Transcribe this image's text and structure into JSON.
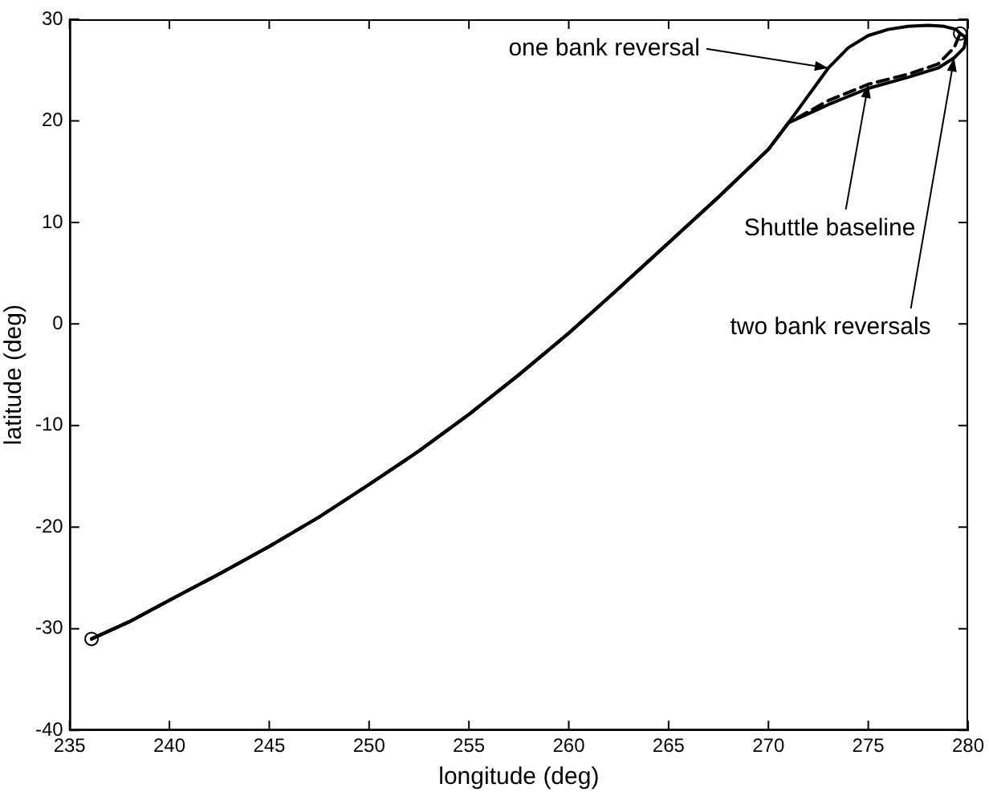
{
  "chart_data": {
    "type": "line",
    "xlabel": "longitude (deg)",
    "ylabel": "latitude (deg)",
    "xlim": [
      235,
      280
    ],
    "xticks": [
      235,
      240,
      245,
      250,
      255,
      260,
      265,
      270,
      275,
      280
    ],
    "ylim": [
      -40,
      30
    ],
    "yticks": [
      -40,
      -30,
      -20,
      -10,
      0,
      10,
      20,
      30
    ],
    "grid": false,
    "legend": false,
    "marker": "none",
    "series": [
      {
        "color": "#000000",
        "line_style": "dashed",
        "x": [
          236.1,
          238,
          240,
          242.5,
          245,
          247.5,
          250,
          252.5,
          255,
          257.5,
          260,
          262.5,
          265,
          267.5,
          270,
          271,
          273,
          275,
          277,
          278.5,
          279.3,
          279.6
        ],
        "values": [
          -31,
          -29.3,
          -27.2,
          -24.6,
          -21.9,
          -19,
          -15.8,
          -12.5,
          -8.9,
          -5,
          -0.9,
          3.5,
          8,
          12.5,
          17.2,
          19.8,
          22,
          23.6,
          24.6,
          25.6,
          27.2,
          28.6
        ]
      },
      {
        "color": "#000000",
        "line_style": "solid",
        "x": [
          236.1,
          238,
          240,
          242.5,
          245,
          247.5,
          250,
          252.5,
          255,
          257.5,
          260,
          262.5,
          265,
          267.5,
          270,
          271,
          272,
          273,
          274,
          275,
          276,
          277,
          278,
          278.8,
          279.4,
          279.6
        ],
        "values": [
          -31,
          -29.3,
          -27.2,
          -24.6,
          -21.9,
          -19,
          -15.8,
          -12.5,
          -8.9,
          -5,
          -0.9,
          3.5,
          8,
          12.5,
          17.2,
          19.8,
          22.5,
          25.2,
          27.2,
          28.4,
          29,
          29.3,
          29.4,
          29.3,
          29,
          28.6
        ]
      },
      {
        "color": "#000000",
        "line_style": "solid",
        "x": [
          236.1,
          238,
          240,
          242.5,
          245,
          247.5,
          250,
          252.5,
          255,
          257.5,
          260,
          262.5,
          265,
          267.5,
          270,
          271,
          273,
          275,
          277,
          278.5,
          279.3,
          279.8,
          279.9,
          279.6
        ],
        "values": [
          -31,
          -29.3,
          -27.2,
          -24.6,
          -21.9,
          -19,
          -15.8,
          -12.5,
          -8.9,
          -5,
          -0.9,
          3.5,
          8,
          12.5,
          17.2,
          19.8,
          21.6,
          23.2,
          24.3,
          25.2,
          26.2,
          27.2,
          28.2,
          28.6
        ]
      },
      {
        "type": "scatter",
        "color": "#000000",
        "marker": "circle",
        "x": [
          236.1,
          279.6
        ],
        "values": [
          -31,
          28.6
        ]
      }
    ],
    "annotations": [
      {
        "text": "one bank reversal",
        "x": 273,
        "y": 25.2
      },
      {
        "text": "Shuttle baseline",
        "x": 275,
        "y": 23.6
      },
      {
        "text": "two bank reversals",
        "x": 279.3,
        "y": 26.2
      }
    ]
  }
}
